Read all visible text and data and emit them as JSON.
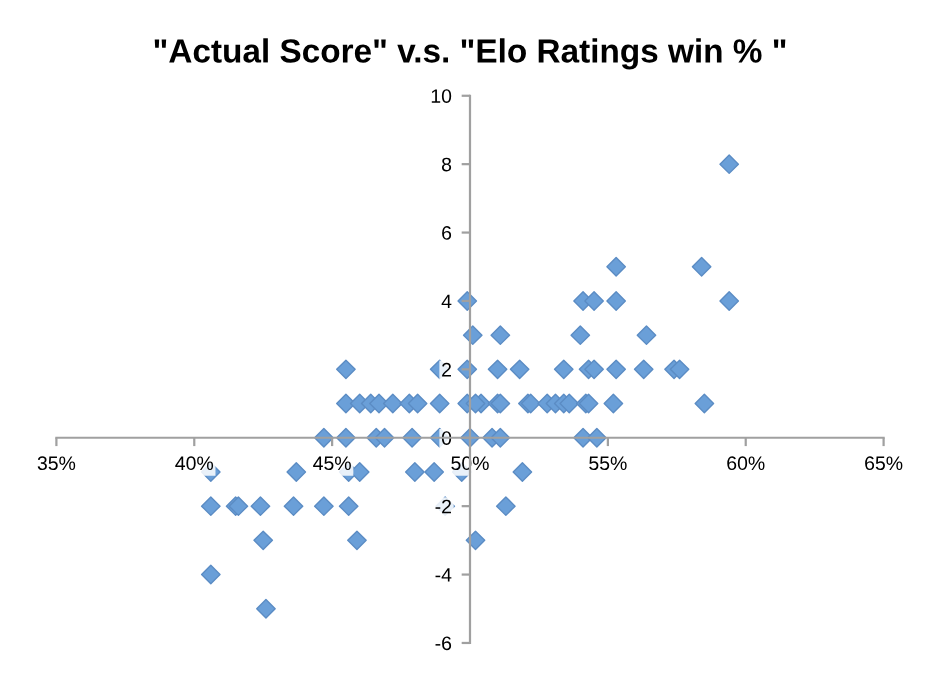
{
  "chart_data": {
    "type": "scatter",
    "title": "\"Actual Score\" v.s. \"Elo Ratings win % \"",
    "series": [
      {
        "color": "#6a9fd8",
        "x": [
          49.9,
          50.1,
          45.5,
          48.9,
          49.9,
          45.5,
          46.0,
          46.4,
          46.7,
          47.2,
          47.8,
          48.1,
          48.9,
          49.9,
          50.4,
          44.7,
          45.5,
          46.6,
          46.9,
          47.9,
          48.9,
          50.0,
          50.8,
          40.6,
          43.7,
          45.6,
          46.0,
          48.0,
          48.7,
          49.7,
          40.6,
          41.5,
          41.6,
          42.4,
          43.6,
          44.7,
          45.6,
          49.1,
          42.5,
          45.9,
          50.2,
          40.6,
          42.6,
          59.4,
          55.3,
          58.4,
          54.1,
          54.5,
          55.3,
          59.4,
          51.1,
          54.0,
          56.4,
          51.0,
          51.8,
          53.4,
          54.3,
          54.5,
          55.3,
          56.3,
          57.4,
          57.6,
          50.2,
          51.0,
          51.1,
          52.1,
          52.2,
          52.8,
          53.1,
          53.4,
          53.6,
          54.2,
          54.3,
          55.2,
          58.5,
          51.1,
          54.1,
          54.6,
          51.9,
          51.3
        ],
        "values": [
          4,
          3,
          2,
          2,
          2,
          1,
          1,
          1,
          1,
          1,
          1,
          1,
          1,
          1,
          1,
          0,
          0,
          0,
          0,
          0,
          0,
          0,
          0,
          -1,
          -1,
          -1,
          -1,
          -1,
          -1,
          -1,
          -2,
          -2,
          -2,
          -2,
          -2,
          -2,
          -2,
          -2,
          -3,
          -3,
          -3,
          -4,
          -5,
          8,
          5,
          5,
          4,
          4,
          4,
          4,
          3,
          3,
          3,
          2,
          2,
          2,
          2,
          2,
          2,
          2,
          2,
          2,
          1,
          1,
          1,
          1,
          1,
          1,
          1,
          1,
          1,
          1,
          1,
          1,
          1,
          0,
          0,
          0,
          -1,
          -2
        ]
      }
    ],
    "marker": "diamond",
    "grid": false,
    "xlim": [
      35,
      65
    ],
    "xticks": [
      {
        "value": 35,
        "label": "35%"
      },
      {
        "value": 40,
        "label": "40%"
      },
      {
        "value": 45,
        "label": "45%"
      },
      {
        "value": 50,
        "label": "50%"
      },
      {
        "value": 55,
        "label": "55%"
      },
      {
        "value": 60,
        "label": "60%"
      },
      {
        "value": 65,
        "label": "65%"
      }
    ],
    "ylim": [
      -6,
      10
    ],
    "yticks": [
      -6,
      -4,
      -2,
      0,
      2,
      4,
      6,
      8,
      10
    ]
  }
}
